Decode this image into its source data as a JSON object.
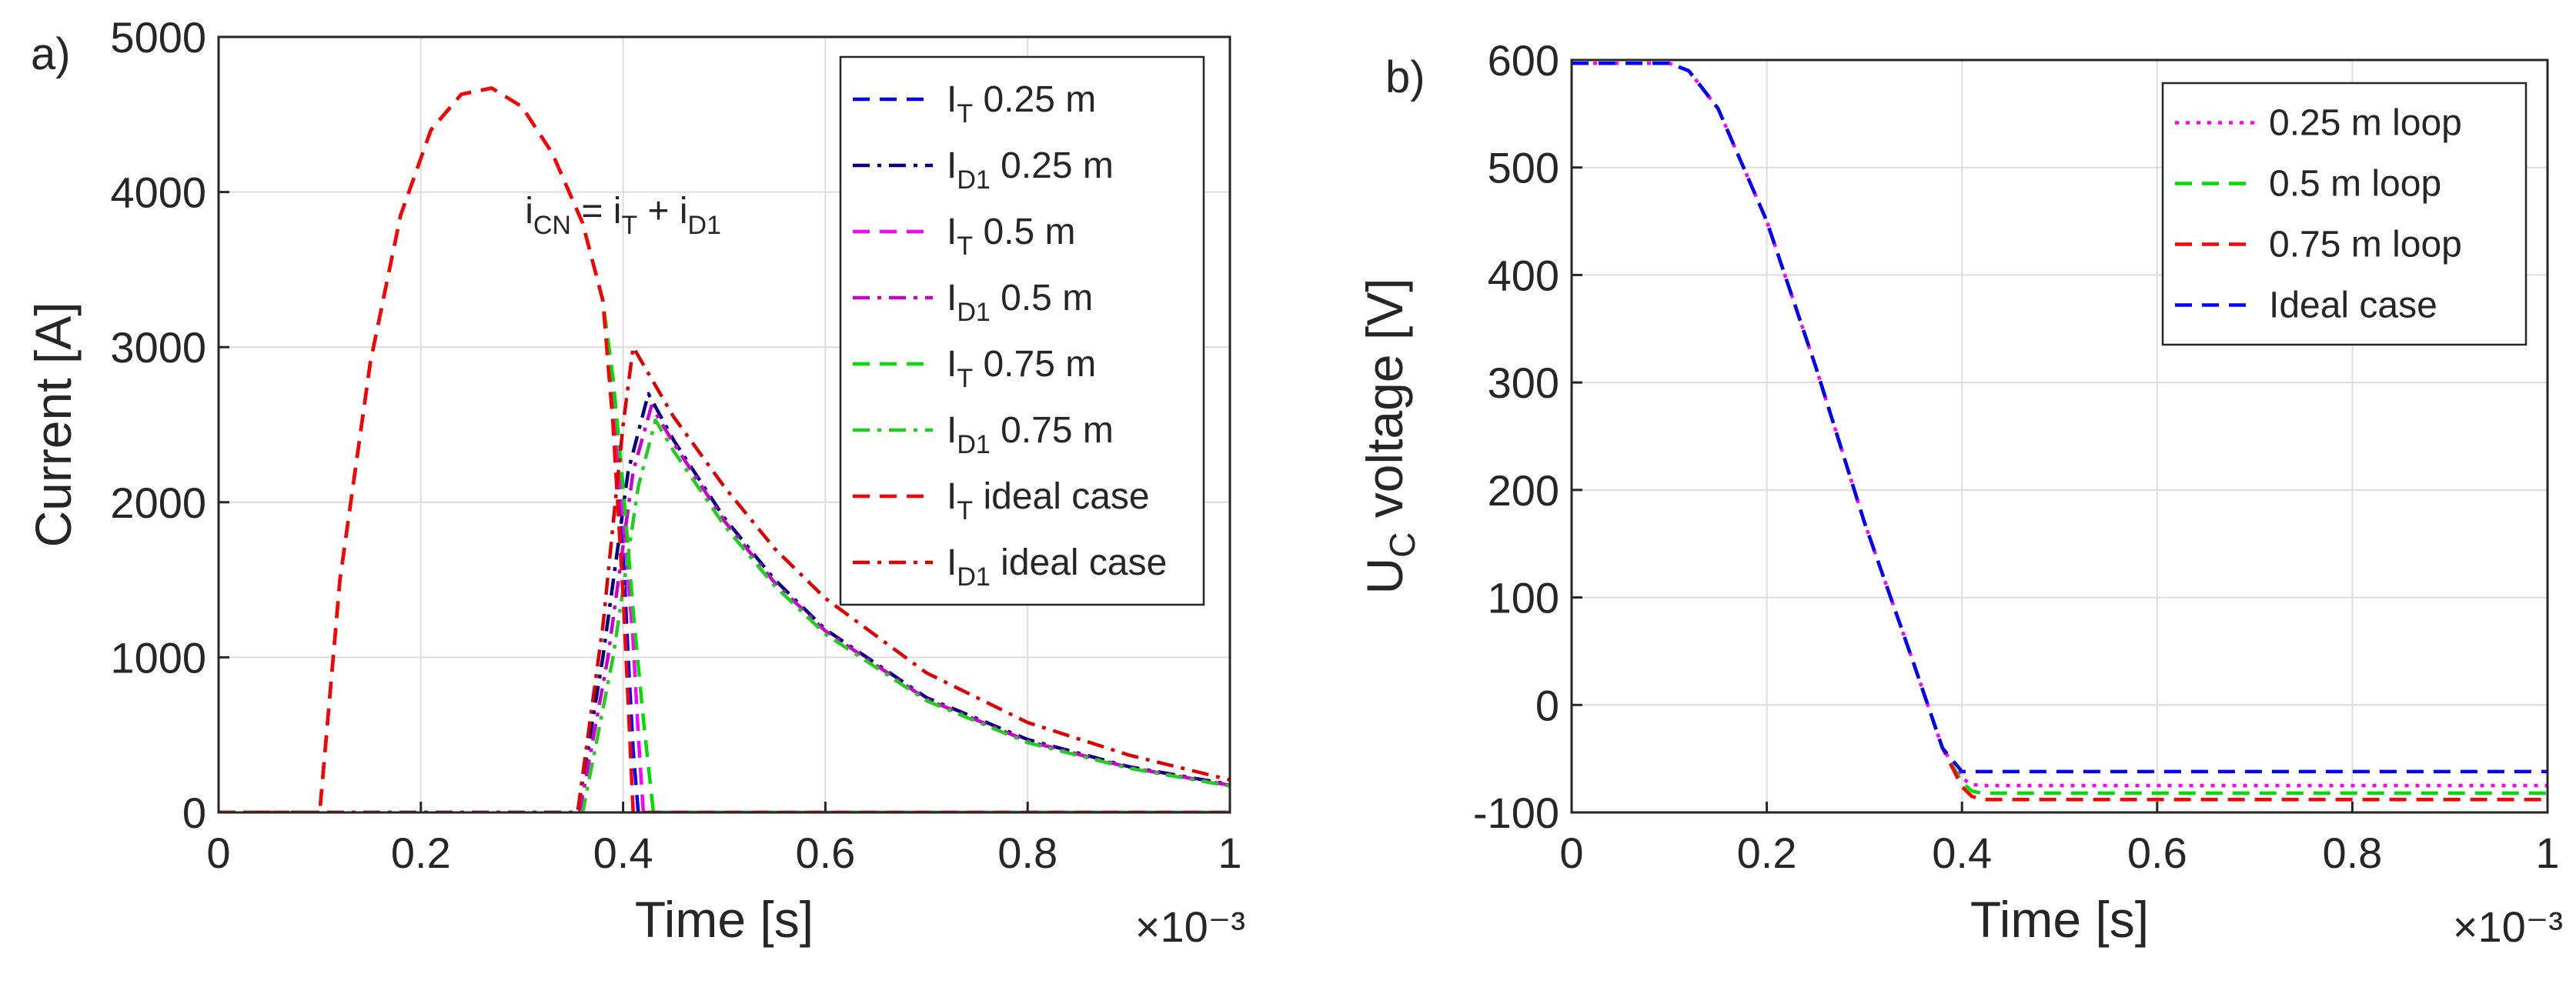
{
  "chart_data": [
    {
      "panel_label": "a)",
      "type": "line",
      "xlabel": "Time [s]",
      "x_exponent": "×10⁻³",
      "ylabel": "Current [A]",
      "xlim": [
        0,
        1
      ],
      "ylim": [
        0,
        5000
      ],
      "x_ticks": [
        "0",
        "0.2",
        "0.4",
        "0.6",
        "0.8",
        "1"
      ],
      "y_ticks": [
        "0",
        "1000",
        "2000",
        "3000",
        "4000",
        "5000"
      ],
      "grid": true,
      "legend_position": "top-right",
      "annotation": {
        "text": "i_CN = i_T + i_D1",
        "x": 0.4,
        "y": 3800
      },
      "series": [
        {
          "name": "I_T 0.25 m",
          "color": "#0000ff",
          "style": "dashed",
          "x": [
            0,
            0.1,
            0.12,
            0.15,
            0.18,
            0.21,
            0.24,
            0.27,
            0.3,
            0.33,
            0.36,
            0.38,
            0.39,
            0.4,
            0.405,
            0.41,
            0.415,
            1.0
          ],
          "y": [
            0,
            0,
            1500,
            2900,
            3850,
            4400,
            4630,
            4670,
            4550,
            4250,
            3800,
            3300,
            2600,
            1700,
            1000,
            400,
            0,
            0
          ]
        },
        {
          "name": "I_D1 0.25 m",
          "color": "#000080",
          "style": "dashdot",
          "x": [
            0,
            0.355,
            0.38,
            0.405,
            0.425,
            0.45,
            0.5,
            0.55,
            0.6,
            0.7,
            0.8,
            0.9,
            1.0
          ],
          "y": [
            0,
            0,
            1000,
            2200,
            2700,
            2400,
            1900,
            1500,
            1180,
            740,
            470,
            295,
            180
          ]
        },
        {
          "name": "I_T 0.5 m",
          "color": "#ff00ff",
          "style": "dashed",
          "x": [
            0,
            0.1,
            0.12,
            0.15,
            0.18,
            0.21,
            0.24,
            0.27,
            0.3,
            0.33,
            0.36,
            0.38,
            0.39,
            0.4,
            0.41,
            0.415,
            0.42,
            1.0
          ],
          "y": [
            0,
            0,
            1500,
            2900,
            3850,
            4400,
            4630,
            4670,
            4550,
            4250,
            3800,
            3300,
            2700,
            1900,
            1100,
            500,
            0,
            0
          ]
        },
        {
          "name": "I_D1 0.5 m",
          "color": "#cc00cc",
          "style": "dashdot",
          "x": [
            0,
            0.357,
            0.385,
            0.41,
            0.428,
            0.45,
            0.5,
            0.55,
            0.6,
            0.7,
            0.8,
            0.9,
            1.0
          ],
          "y": [
            0,
            0,
            1000,
            2200,
            2620,
            2380,
            1880,
            1480,
            1170,
            730,
            460,
            290,
            175
          ]
        },
        {
          "name": "I_T 0.75 m",
          "color": "#00dd00",
          "style": "dashed",
          "x": [
            0,
            0.1,
            0.12,
            0.15,
            0.18,
            0.21,
            0.24,
            0.27,
            0.3,
            0.33,
            0.36,
            0.38,
            0.39,
            0.4,
            0.41,
            0.42,
            0.43,
            1.0
          ],
          "y": [
            0,
            0,
            1500,
            2900,
            3850,
            4400,
            4630,
            4670,
            4550,
            4250,
            3800,
            3300,
            2800,
            2100,
            1300,
            600,
            0,
            0
          ]
        },
        {
          "name": "I_D1 0.75 m",
          "color": "#22cc22",
          "style": "dashdot",
          "x": [
            0,
            0.36,
            0.39,
            0.415,
            0.432,
            0.45,
            0.5,
            0.55,
            0.6,
            0.7,
            0.8,
            0.9,
            1.0
          ],
          "y": [
            0,
            0,
            1000,
            2100,
            2530,
            2330,
            1850,
            1460,
            1150,
            720,
            450,
            285,
            170
          ]
        },
        {
          "name": "I_T ideal case",
          "color": "#ff0000",
          "style": "dashed",
          "x": [
            0,
            0.1,
            0.12,
            0.15,
            0.18,
            0.21,
            0.24,
            0.27,
            0.3,
            0.33,
            0.36,
            0.38,
            0.39,
            0.4,
            0.405,
            0.41,
            1.0
          ],
          "y": [
            0,
            0,
            1500,
            2900,
            3850,
            4400,
            4630,
            4670,
            4550,
            4250,
            3800,
            3300,
            2500,
            1400,
            700,
            0,
            0
          ]
        },
        {
          "name": "I_D1 ideal case",
          "color": "#dd0000",
          "style": "dashdot",
          "x": [
            0,
            0.355,
            0.38,
            0.4,
            0.41,
            0.45,
            0.5,
            0.55,
            0.6,
            0.7,
            0.8,
            0.9,
            1.0
          ],
          "y": [
            0,
            0,
            1200,
            2500,
            3000,
            2550,
            2100,
            1700,
            1380,
            900,
            580,
            370,
            210
          ]
        }
      ]
    },
    {
      "panel_label": "b)",
      "type": "line",
      "xlabel": "Time [s]",
      "x_exponent": "×10⁻³",
      "ylabel": "U_C voltage [V]",
      "xlim": [
        0,
        1
      ],
      "ylim": [
        -100,
        600
      ],
      "x_ticks": [
        "0",
        "0.2",
        "0.4",
        "0.6",
        "0.8",
        "1"
      ],
      "y_ticks": [
        "-100",
        "0",
        "100",
        "200",
        "300",
        "400",
        "500",
        "600"
      ],
      "grid": true,
      "legend_position": "top-right",
      "series": [
        {
          "name": "0.25 m loop",
          "color": "#ff00ff",
          "style": "dotted",
          "x": [
            0,
            0.1,
            0.12,
            0.15,
            0.2,
            0.25,
            0.3,
            0.35,
            0.38,
            0.4,
            0.41,
            0.42,
            0.44,
            1.0
          ],
          "y": [
            597,
            597,
            590,
            555,
            450,
            315,
            170,
            40,
            -40,
            -68,
            -74,
            -75,
            -75,
            -75
          ]
        },
        {
          "name": "0.5 m loop",
          "color": "#00dd00",
          "style": "dashed",
          "x": [
            0,
            0.1,
            0.12,
            0.15,
            0.2,
            0.25,
            0.3,
            0.35,
            0.38,
            0.4,
            0.41,
            0.42,
            0.44,
            1.0
          ],
          "y": [
            597,
            597,
            590,
            555,
            450,
            315,
            170,
            40,
            -40,
            -72,
            -80,
            -82,
            -82,
            -82
          ]
        },
        {
          "name": "0.75 m loop",
          "color": "#ff0000",
          "style": "dashed",
          "x": [
            0,
            0.1,
            0.12,
            0.15,
            0.2,
            0.25,
            0.3,
            0.35,
            0.38,
            0.4,
            0.41,
            0.42,
            0.44,
            1.0
          ],
          "y": [
            597,
            597,
            590,
            555,
            450,
            315,
            170,
            40,
            -40,
            -76,
            -85,
            -88,
            -88,
            -88
          ]
        },
        {
          "name": "Ideal case",
          "color": "#0000ff",
          "style": "dashed",
          "x": [
            0,
            0.1,
            0.12,
            0.15,
            0.2,
            0.25,
            0.3,
            0.35,
            0.38,
            0.4,
            0.41,
            1.0
          ],
          "y": [
            597,
            597,
            590,
            555,
            450,
            315,
            170,
            40,
            -40,
            -62,
            -62,
            -62
          ]
        }
      ]
    }
  ]
}
